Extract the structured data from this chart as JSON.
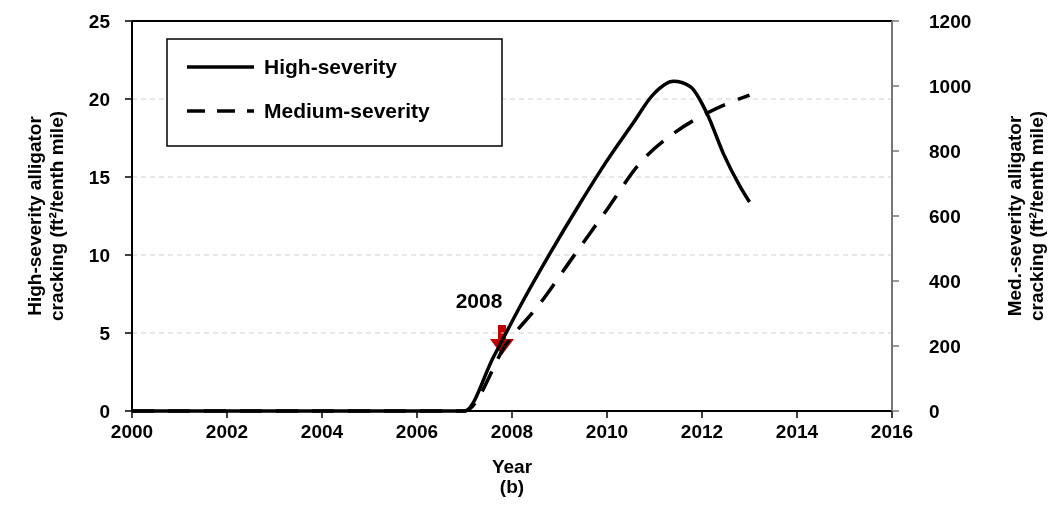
{
  "chart_data": {
    "type": "line",
    "xlabel": "Year",
    "ylabel": "High-severity alligator\ncracking (ft²/tenth mile)",
    "y2label": "Med.-severity alligator\ncracking (ft²/tenth mile)",
    "xlim": [
      2000,
      2016
    ],
    "xticks": [
      2000,
      2002,
      2004,
      2006,
      2008,
      2010,
      2012,
      2014,
      2016
    ],
    "ylim": [
      0,
      25
    ],
    "yticks": [
      0,
      5,
      10,
      15,
      20,
      25
    ],
    "y2lim": [
      0,
      1200
    ],
    "y2ticks": [
      0,
      200,
      400,
      600,
      800,
      1000,
      1200
    ],
    "grid": "y",
    "legend": "top left",
    "series": [
      {
        "name": "High-severity",
        "color": "#000000",
        "line_style": "solid",
        "x": [
          2000,
          2007,
          2007.61,
          2008.24,
          2008.8,
          2009.43,
          2009.99,
          2010.55,
          2010.97,
          2011.4,
          2011.75,
          2012.1,
          2012.45,
          2012.8,
          2013
        ],
        "values": [
          0,
          0,
          3.46,
          7.1,
          10.1,
          13.3,
          16,
          18.46,
          20.28,
          21.13,
          20.8,
          19.1,
          16.5,
          14.4,
          13.4
        ]
      },
      {
        "name": "Medium-severity",
        "color": "#000000",
        "line_style": "dashed",
        "axis": "y2",
        "x": [
          2000,
          2007,
          2007.89,
          2008.59,
          2009.29,
          2009.99,
          2010.69,
          2011.4,
          2012.1,
          2013
        ],
        "values": [
          0,
          0,
          208,
          331,
          475,
          618,
          762,
          854,
          916,
          972
        ]
      }
    ],
    "annotations": [
      "2008",
      "(b)"
    ]
  }
}
